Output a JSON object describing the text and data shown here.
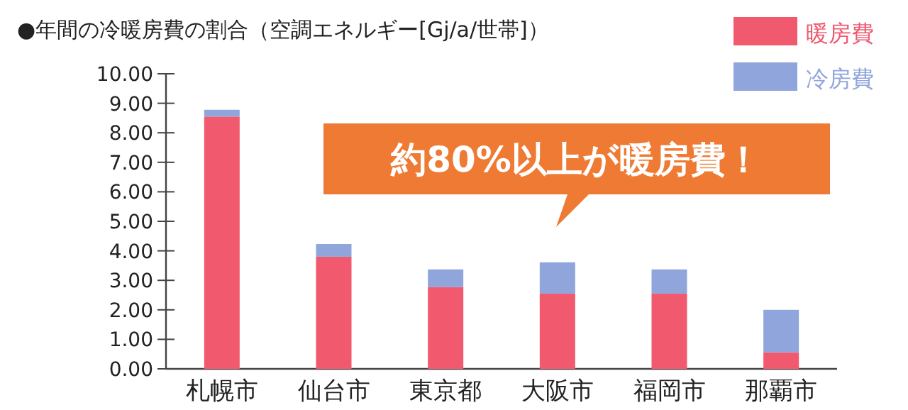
{
  "chart_data": {
    "type": "bar",
    "title": "●年間の冷暖房費の割合（空調エネルギー[Gj/a/世帯]）",
    "categories": [
      "札幌市",
      "仙台市",
      "東京都",
      "大阪市",
      "福岡市",
      "那覇市"
    ],
    "stacked": true,
    "legend": "top right",
    "grid": false,
    "series": [
      {
        "name": "暖房費",
        "color": "#f0596e",
        "values": [
          8.55,
          3.8,
          2.77,
          2.55,
          2.55,
          0.56
        ]
      },
      {
        "name": "冷房費",
        "color": "#8fa5dc",
        "values": [
          0.23,
          0.43,
          0.6,
          1.06,
          0.82,
          1.44
        ]
      }
    ],
    "ylim": [
      0,
      10
    ],
    "yticks": [
      {
        "value": 0,
        "label": "0.00"
      },
      {
        "value": 1,
        "label": "1.00"
      },
      {
        "value": 2,
        "label": "2.00"
      },
      {
        "value": 3,
        "label": "3.00"
      },
      {
        "value": 4,
        "label": "4.00"
      },
      {
        "value": 5,
        "label": "5.00"
      },
      {
        "value": 6,
        "label": "6.00"
      },
      {
        "value": 7,
        "label": "7.00"
      },
      {
        "value": 8,
        "label": "8.00"
      },
      {
        "value": 9,
        "label": "9.00"
      },
      {
        "value": 10,
        "label": "10.00"
      }
    ],
    "annotations": [
      "約80%以上が暖房費！"
    ]
  }
}
